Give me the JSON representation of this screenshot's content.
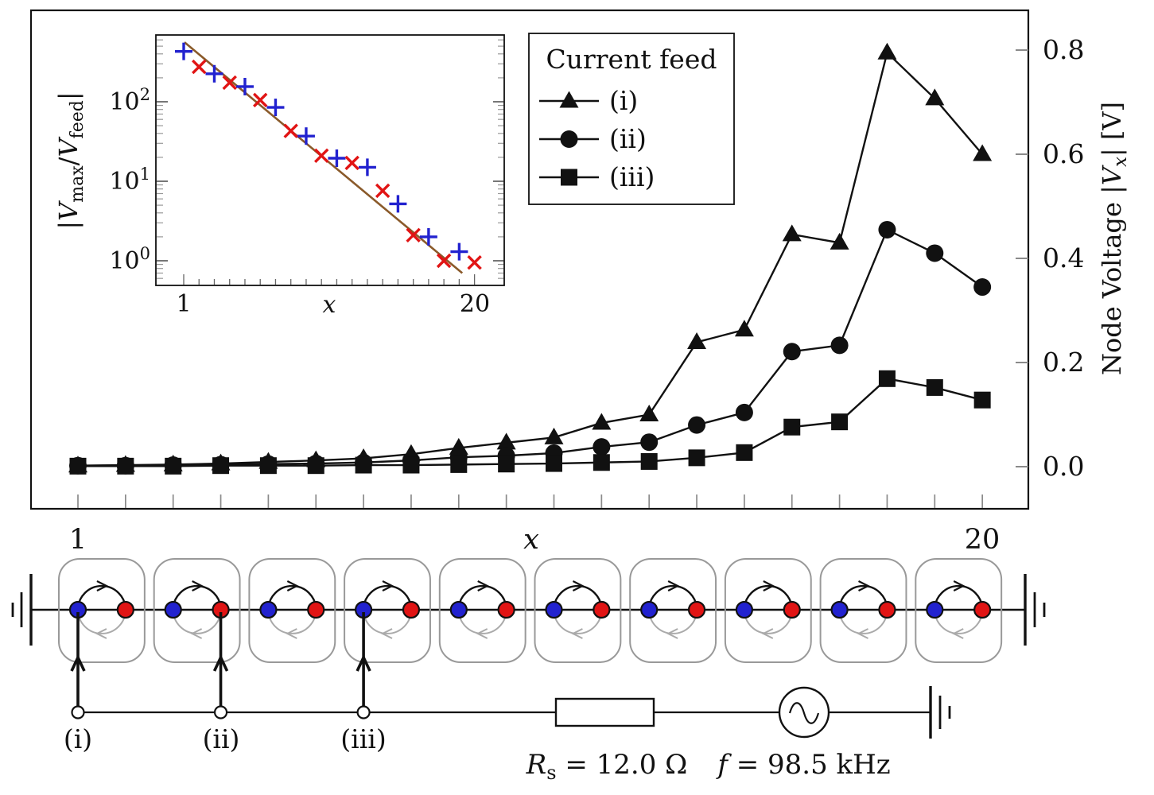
{
  "figure": {
    "colors": {
      "ink": "#111111",
      "blue": "#2222cf",
      "red": "#e11414",
      "fit_line_brown": "#8a5a2a",
      "cell_border_gray": "#999999",
      "arc_gray": "#aaaaaa",
      "tick_gray": "#8a8a8a"
    }
  },
  "labels": {
    "main_axis": {
      "left": "1",
      "mid": "x",
      "right": "20"
    },
    "inset_axis": {
      "left": "1",
      "mid": "x",
      "right": "20"
    },
    "right_axis_title": {
      "p1": "Node Voltage |",
      "v": "V",
      "sub": "x",
      "p2": "| [V]"
    },
    "inset_y_title": {
      "p1": "|",
      "v1": "V",
      "s1": "max",
      "p2": "/",
      "v2": "V",
      "s2": "feed",
      "p3": "|"
    }
  },
  "legend": {
    "title": "Current feed",
    "entries": [
      {
        "label": "(i)",
        "marker": "triangle"
      },
      {
        "label": "(ii)",
        "marker": "circle"
      },
      {
        "label": "(iii)",
        "marker": "square"
      }
    ]
  },
  "chart_data": [
    {
      "id": "main",
      "type": "line",
      "xlabel": "x",
      "ylabel": "Node Voltage |Vx| [V]",
      "x": [
        1,
        2,
        3,
        4,
        5,
        6,
        7,
        8,
        9,
        10,
        11,
        12,
        13,
        14,
        15,
        16,
        17,
        18,
        19,
        20
      ],
      "xlim": [
        0,
        21
      ],
      "ylim": [
        -0.08,
        0.88
      ],
      "yticks": [
        0.0,
        0.2,
        0.4,
        0.6,
        0.8
      ],
      "ytick_labels": [
        "0.0",
        "0.2",
        "0.4",
        "0.6",
        "0.8"
      ],
      "grid": false,
      "legend_position": "top-right",
      "series": [
        {
          "name": "(i)",
          "marker": "triangle",
          "values": [
            0.002,
            0.003,
            0.004,
            0.006,
            0.009,
            0.012,
            0.016,
            0.024,
            0.036,
            0.046,
            0.056,
            0.084,
            0.1,
            0.239,
            0.263,
            0.446,
            0.43,
            0.795,
            0.707,
            0.6
          ]
        },
        {
          "name": "(ii)",
          "marker": "circle",
          "values": [
            0.002,
            0.002,
            0.003,
            0.004,
            0.005,
            0.006,
            0.008,
            0.012,
            0.018,
            0.021,
            0.026,
            0.038,
            0.047,
            0.08,
            0.104,
            0.221,
            0.233,
            0.455,
            0.41,
            0.345
          ]
        },
        {
          "name": "(iii)",
          "marker": "square",
          "values": [
            0.001,
            0.001,
            0.001,
            0.002,
            0.002,
            0.002,
            0.003,
            0.003,
            0.004,
            0.005,
            0.006,
            0.008,
            0.01,
            0.017,
            0.027,
            0.076,
            0.086,
            0.169,
            0.152,
            0.128
          ]
        }
      ]
    },
    {
      "id": "inset",
      "type": "scatter",
      "xlabel": "x",
      "ylabel": "|Vmax/Vfeed|",
      "yscale": "log",
      "xlim": [
        -0.8,
        22
      ],
      "ylim": [
        0.49,
        650
      ],
      "ytick_exponents": [
        2,
        1,
        0
      ],
      "xtick_count": 20,
      "xtick_labeled": [
        1,
        20
      ],
      "series": [
        {
          "name": "blue-plus",
          "marker": "plus",
          "color": "#2222cf",
          "points": [
            [
              1,
              430
            ],
            [
              3,
              225
            ],
            [
              5,
              155
            ],
            [
              7,
              85
            ],
            [
              9,
              37
            ],
            [
              11,
              19.5
            ],
            [
              13,
              15
            ],
            [
              15,
              5.2
            ],
            [
              17,
              2.0
            ],
            [
              19,
              1.3
            ]
          ]
        },
        {
          "name": "red-cross",
          "marker": "cross",
          "color": "#e11414",
          "points": [
            [
              2,
              275
            ],
            [
              4,
              174
            ],
            [
              6,
              105
            ],
            [
              8,
              43
            ],
            [
              10,
              21
            ],
            [
              12,
              17
            ],
            [
              14,
              7.6
            ],
            [
              16,
              2.1
            ],
            [
              18,
              1.0
            ],
            [
              20,
              0.95
            ]
          ]
        }
      ],
      "fit_line": {
        "color": "#8a5a2a",
        "points": [
          [
            1.05,
            560
          ],
          [
            19.2,
            0.7
          ]
        ]
      }
    }
  ],
  "circuit": {
    "num_cells": 10,
    "node_count": 20,
    "node_colors": {
      "odd": "#2222cf",
      "even": "#e11414"
    },
    "feeds": [
      {
        "label": "(i)",
        "node": 1
      },
      {
        "label": "(ii)",
        "node": 4
      },
      {
        "label": "(iii)",
        "node": 7
      }
    ],
    "resistor": {
      "symbol": "R",
      "sub": "s",
      "rest": " = 12.0 Ω"
    },
    "source": {
      "symbol": "f",
      "rest": " = 98.5 kHz"
    }
  }
}
